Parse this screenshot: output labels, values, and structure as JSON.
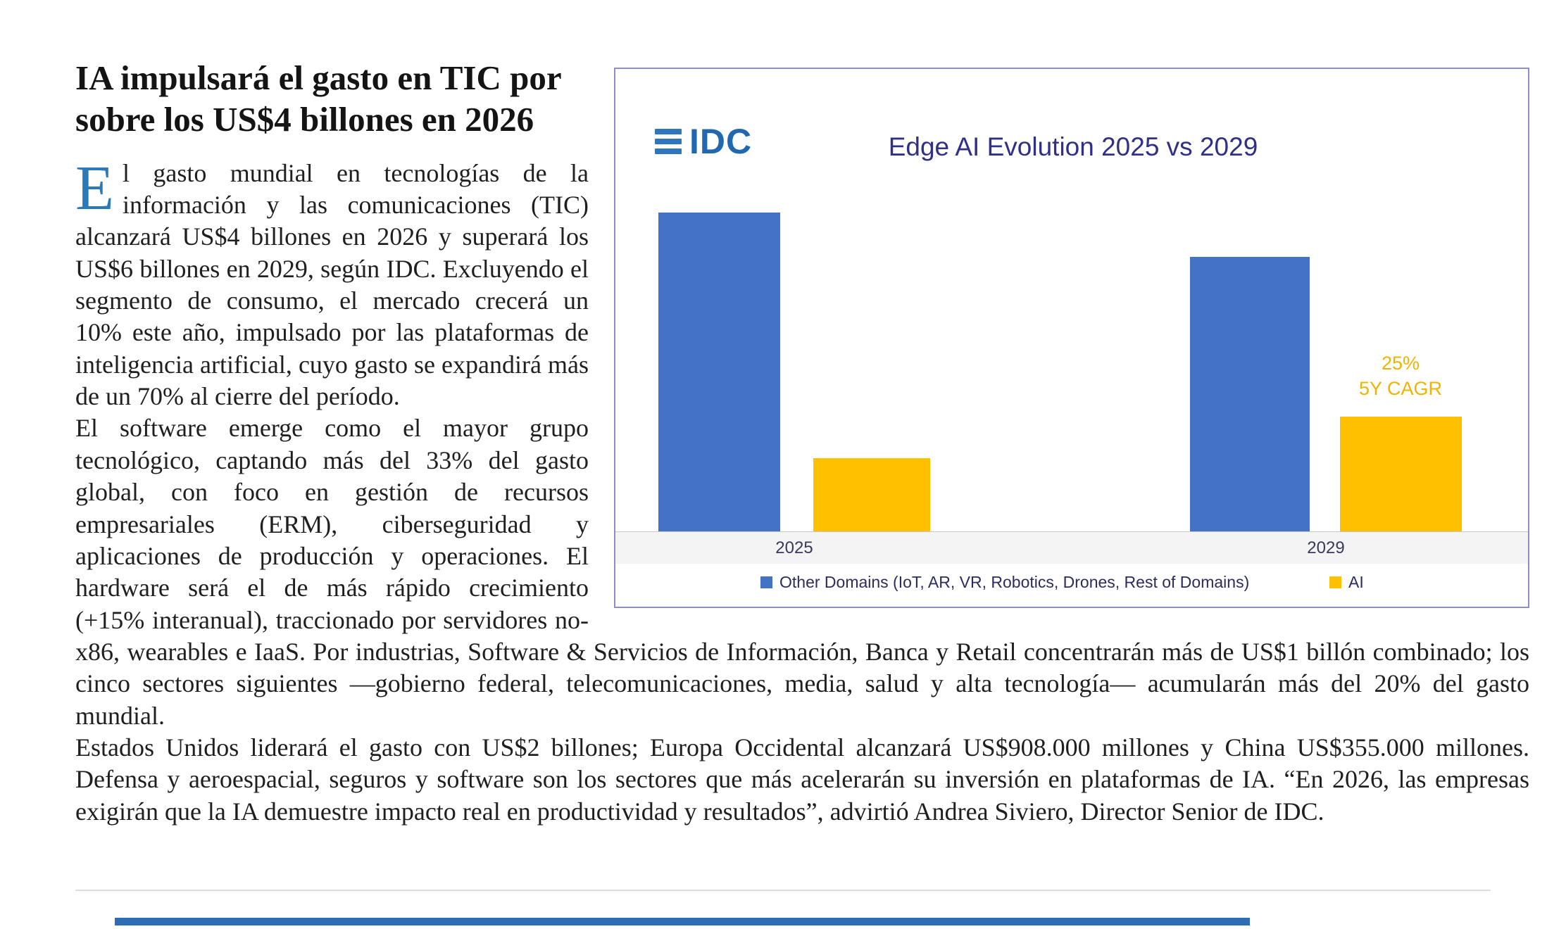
{
  "article": {
    "headline": "IA impulsará el gasto en TIC por sobre los US$4 billones en 2026",
    "dropcap": "E",
    "paragraphs": {
      "p1": "l gasto mundial en tecnologías de la información y las comunicaciones (TIC) alcanzará US$4 billones en 2026 y superará los US$6 billones en 2029, según IDC. Excluyendo el segmento de consumo, el mercado crecerá un 10% este año, impulsado por las plataformas de inteligencia artificial, cuyo gasto se expandirá más de un 70% al cierre del período.",
      "p2": "El software emerge como el mayor grupo tecnológico, captando más del 33% del gasto global, con foco en gestión de recursos empresariales (ERM), ciberseguridad y aplicaciones de producción y operaciones. El hardware será el de más rápido crecimiento (+15% interanual), traccionado por servidores no-x86, wearables e IaaS. Por industrias, Software & Servicios de Información, Banca y Retail concentrarán más de US$1 billón combinado; los cinco sectores siguientes —gobierno federal, telecomunicaciones, media, salud y alta tecnología— acumularán más del 20% del gasto mundial.",
      "p3": "Estados Unidos liderará el gasto con US$2 billones; Europa Occidental alcanzará US$908.000 millones y China US$355.000 millones. Defensa y aeroespacial, seguros y software son los sectores que más acelerarán su inversión en plataformas de IA. “En 2026, las empresas exigirán que la IA demuestre impacto real en productividad y resultados”, advirtió Andrea Siviero, Director Senior de IDC."
    }
  },
  "chart_data": {
    "type": "bar",
    "logo_text": "IDC",
    "title": "Edge AI Evolution 2025 vs 2029",
    "categories": [
      "2025",
      "2029"
    ],
    "series": [
      {
        "name": "Other Domains (IoT, AR, VR, Robotics, Drones, Rest of Domains)",
        "color": "#4472c4",
        "values": [
          100,
          86
        ]
      },
      {
        "name": "AI",
        "color": "#ffc000",
        "values": [
          23,
          36
        ]
      }
    ],
    "annotation": {
      "line1": "25%",
      "line2": "5Y CAGR",
      "applies_to": "AI 2029 bar"
    },
    "xlabel": "",
    "ylabel": "",
    "ylim": [
      0,
      105
    ],
    "grid": false,
    "legend_position": "bottom",
    "note": "No numeric value axis shown; values are relative bar heights indexed to 2025 Other Domains = 100"
  },
  "colors": {
    "bar_other_domains": "#4472c4",
    "bar_ai": "#ffc000",
    "chart_title": "#30308a",
    "idc_logo": "#2268ae",
    "dropcap": "#2b7ab8",
    "chart_border": "#8e8ec0",
    "footer_bar": "#2e6cb3"
  }
}
